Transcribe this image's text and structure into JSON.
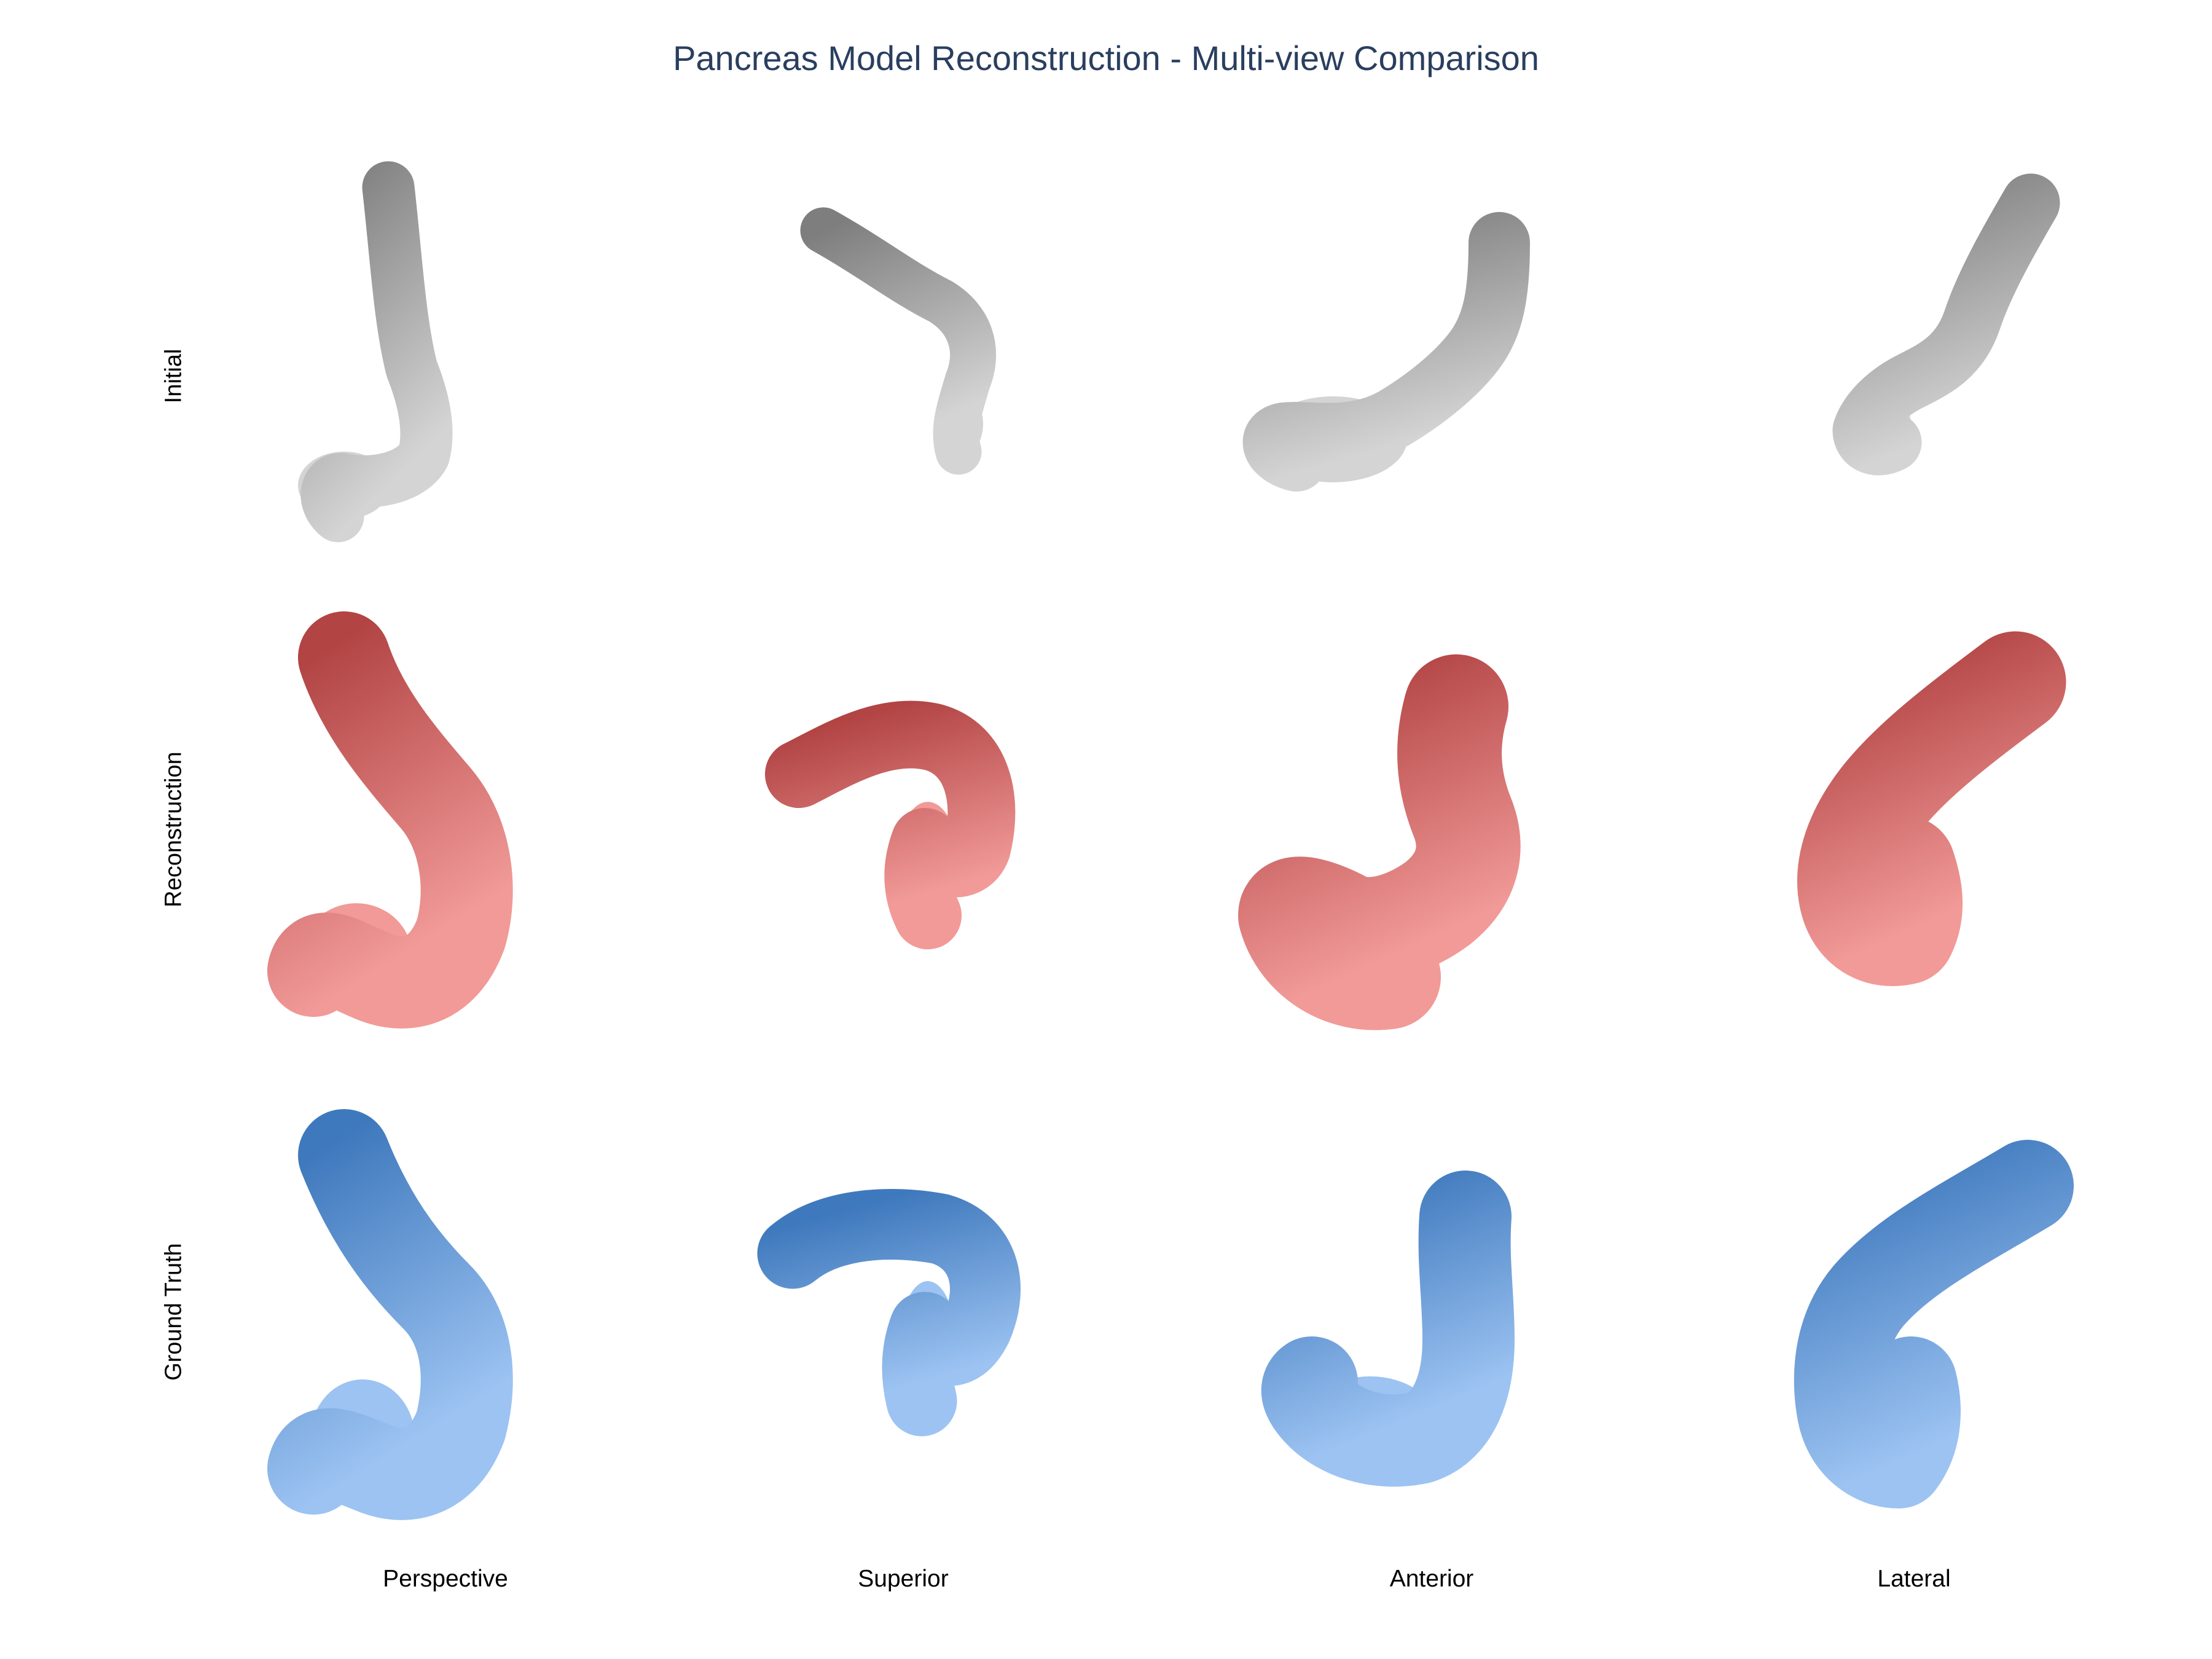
{
  "title": "Pancreas Model Reconstruction - Multi-view Comparison",
  "rows": [
    {
      "label": "Initial",
      "color_dark": "#7e7e7e",
      "color_light": "#d4d4d4"
    },
    {
      "label": "Reconstruction",
      "color_dark": "#b24444",
      "color_light": "#f19a98"
    },
    {
      "label": "Ground Truth",
      "color_dark": "#3f79bd",
      "color_light": "#9cc3f2"
    }
  ],
  "columns": [
    "Perspective",
    "Superior",
    "Anterior",
    "Lateral"
  ]
}
